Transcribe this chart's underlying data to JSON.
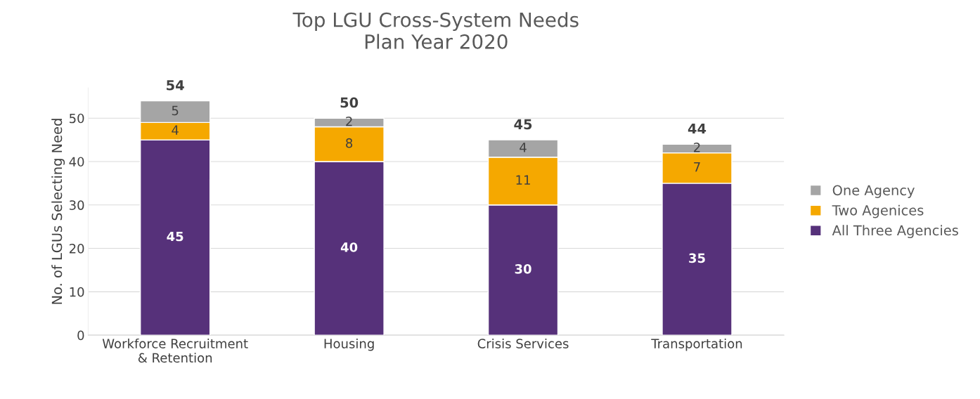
{
  "chart_data": {
    "type": "bar",
    "title": "Top LGU Cross-System Needs\nPlan Year 2020",
    "ylabel": "No. of LGUs Selecting Need",
    "categories": [
      "Workforce Recruitment\n& Retention",
      "Housing",
      "Crisis Services",
      "Transportation"
    ],
    "stacked": true,
    "series": [
      {
        "name": "All Three Agencies",
        "color": "#56317a",
        "values": [
          45,
          40,
          30,
          35
        ]
      },
      {
        "name": "Two Agenices",
        "color": "#f5a800",
        "values": [
          4,
          8,
          11,
          7
        ]
      },
      {
        "name": "One Agency",
        "color": "#a5a5a5",
        "values": [
          5,
          2,
          4,
          2
        ]
      }
    ],
    "totals": [
      "54",
      "50",
      "45",
      "44"
    ],
    "data_labels": true,
    "ylim": [
      0,
      57
    ],
    "yticks": [
      0,
      10,
      20,
      30,
      40,
      50
    ],
    "grid": "y",
    "legend": "right"
  }
}
